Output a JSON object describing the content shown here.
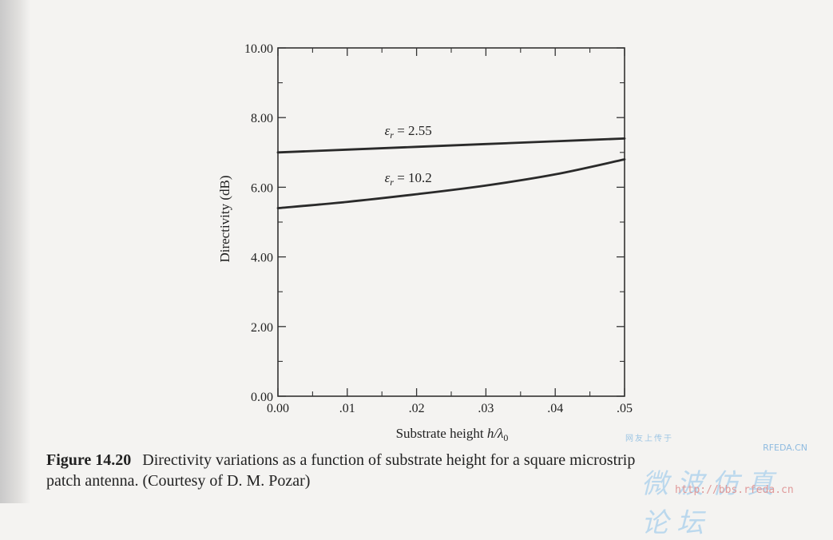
{
  "chart_data": {
    "type": "line",
    "xlabel_prefix": "Substrate height ",
    "xlabel_var": "h/λ",
    "xlabel_sub": "0",
    "ylabel": "Directivity (dB)",
    "xlim": [
      0.0,
      0.05
    ],
    "ylim": [
      0.0,
      10.0
    ],
    "x_ticks": [
      0.0,
      0.01,
      0.02,
      0.03,
      0.04,
      0.05
    ],
    "x_tick_labels": [
      "0.00",
      ".01",
      ".02",
      ".03",
      ".04",
      ".05"
    ],
    "y_ticks": [
      0.0,
      2.0,
      4.0,
      6.0,
      8.0,
      10.0
    ],
    "y_tick_labels": [
      "0.00",
      "2.00",
      "4.00",
      "6.00",
      "8.00",
      "10.00"
    ],
    "grid": false,
    "series": [
      {
        "name": "ε_r = 2.55",
        "label_eps": "ε",
        "label_sub": "r",
        "label_rest": " = 2.55",
        "x": [
          0.0,
          0.01,
          0.02,
          0.03,
          0.04,
          0.05
        ],
        "y": [
          7.0,
          7.08,
          7.16,
          7.24,
          7.32,
          7.4
        ]
      },
      {
        "name": "ε_r = 10.2",
        "label_eps": "ε",
        "label_sub": "r",
        "label_rest": " = 10.2",
        "x": [
          0.0,
          0.01,
          0.02,
          0.03,
          0.04,
          0.05
        ],
        "y": [
          5.4,
          5.58,
          5.8,
          6.05,
          6.37,
          6.8
        ]
      }
    ]
  },
  "caption": {
    "figure_number": "Figure 14.20",
    "text_line1": "Directivity variations as a function of substrate height for a square microstrip",
    "text_line2": "patch antenna. (Courtesy of D. M. Pozar)"
  },
  "watermark": {
    "top_text": "网友上传于",
    "brand": "RFEDA.CN",
    "chinese": "微波仿真论坛",
    "url": "http://bbs.rfeda.cn"
  }
}
